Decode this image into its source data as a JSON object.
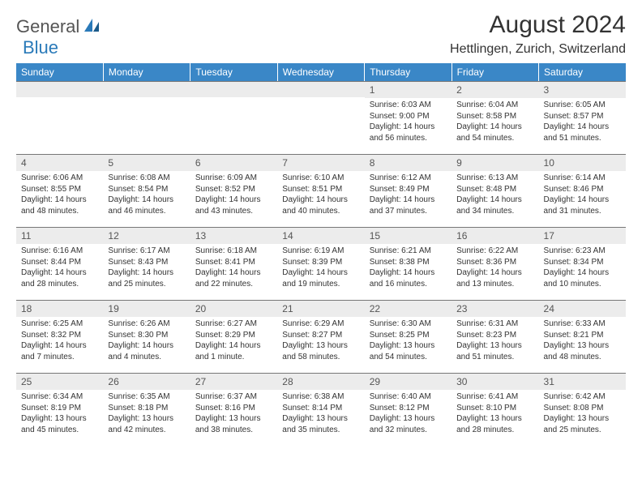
{
  "brand": {
    "general": "General",
    "blue": "Blue"
  },
  "title": "August 2024",
  "location": "Hettlingen, Zurich, Switzerland",
  "colors": {
    "header_bg": "#3a87c7",
    "header_text": "#ffffff",
    "daynum_bg": "#ececec",
    "border": "#777777",
    "brand_blue": "#2a7ab9",
    "text": "#333333"
  },
  "weekdays": [
    "Sunday",
    "Monday",
    "Tuesday",
    "Wednesday",
    "Thursday",
    "Friday",
    "Saturday"
  ],
  "weeks": [
    [
      null,
      null,
      null,
      null,
      {
        "d": "1",
        "sr": "Sunrise: 6:03 AM",
        "ss": "Sunset: 9:00 PM",
        "dl1": "Daylight: 14 hours",
        "dl2": "and 56 minutes."
      },
      {
        "d": "2",
        "sr": "Sunrise: 6:04 AM",
        "ss": "Sunset: 8:58 PM",
        "dl1": "Daylight: 14 hours",
        "dl2": "and 54 minutes."
      },
      {
        "d": "3",
        "sr": "Sunrise: 6:05 AM",
        "ss": "Sunset: 8:57 PM",
        "dl1": "Daylight: 14 hours",
        "dl2": "and 51 minutes."
      }
    ],
    [
      {
        "d": "4",
        "sr": "Sunrise: 6:06 AM",
        "ss": "Sunset: 8:55 PM",
        "dl1": "Daylight: 14 hours",
        "dl2": "and 48 minutes."
      },
      {
        "d": "5",
        "sr": "Sunrise: 6:08 AM",
        "ss": "Sunset: 8:54 PM",
        "dl1": "Daylight: 14 hours",
        "dl2": "and 46 minutes."
      },
      {
        "d": "6",
        "sr": "Sunrise: 6:09 AM",
        "ss": "Sunset: 8:52 PM",
        "dl1": "Daylight: 14 hours",
        "dl2": "and 43 minutes."
      },
      {
        "d": "7",
        "sr": "Sunrise: 6:10 AM",
        "ss": "Sunset: 8:51 PM",
        "dl1": "Daylight: 14 hours",
        "dl2": "and 40 minutes."
      },
      {
        "d": "8",
        "sr": "Sunrise: 6:12 AM",
        "ss": "Sunset: 8:49 PM",
        "dl1": "Daylight: 14 hours",
        "dl2": "and 37 minutes."
      },
      {
        "d": "9",
        "sr": "Sunrise: 6:13 AM",
        "ss": "Sunset: 8:48 PM",
        "dl1": "Daylight: 14 hours",
        "dl2": "and 34 minutes."
      },
      {
        "d": "10",
        "sr": "Sunrise: 6:14 AM",
        "ss": "Sunset: 8:46 PM",
        "dl1": "Daylight: 14 hours",
        "dl2": "and 31 minutes."
      }
    ],
    [
      {
        "d": "11",
        "sr": "Sunrise: 6:16 AM",
        "ss": "Sunset: 8:44 PM",
        "dl1": "Daylight: 14 hours",
        "dl2": "and 28 minutes."
      },
      {
        "d": "12",
        "sr": "Sunrise: 6:17 AM",
        "ss": "Sunset: 8:43 PM",
        "dl1": "Daylight: 14 hours",
        "dl2": "and 25 minutes."
      },
      {
        "d": "13",
        "sr": "Sunrise: 6:18 AM",
        "ss": "Sunset: 8:41 PM",
        "dl1": "Daylight: 14 hours",
        "dl2": "and 22 minutes."
      },
      {
        "d": "14",
        "sr": "Sunrise: 6:19 AM",
        "ss": "Sunset: 8:39 PM",
        "dl1": "Daylight: 14 hours",
        "dl2": "and 19 minutes."
      },
      {
        "d": "15",
        "sr": "Sunrise: 6:21 AM",
        "ss": "Sunset: 8:38 PM",
        "dl1": "Daylight: 14 hours",
        "dl2": "and 16 minutes."
      },
      {
        "d": "16",
        "sr": "Sunrise: 6:22 AM",
        "ss": "Sunset: 8:36 PM",
        "dl1": "Daylight: 14 hours",
        "dl2": "and 13 minutes."
      },
      {
        "d": "17",
        "sr": "Sunrise: 6:23 AM",
        "ss": "Sunset: 8:34 PM",
        "dl1": "Daylight: 14 hours",
        "dl2": "and 10 minutes."
      }
    ],
    [
      {
        "d": "18",
        "sr": "Sunrise: 6:25 AM",
        "ss": "Sunset: 8:32 PM",
        "dl1": "Daylight: 14 hours",
        "dl2": "and 7 minutes."
      },
      {
        "d": "19",
        "sr": "Sunrise: 6:26 AM",
        "ss": "Sunset: 8:30 PM",
        "dl1": "Daylight: 14 hours",
        "dl2": "and 4 minutes."
      },
      {
        "d": "20",
        "sr": "Sunrise: 6:27 AM",
        "ss": "Sunset: 8:29 PM",
        "dl1": "Daylight: 14 hours",
        "dl2": "and 1 minute."
      },
      {
        "d": "21",
        "sr": "Sunrise: 6:29 AM",
        "ss": "Sunset: 8:27 PM",
        "dl1": "Daylight: 13 hours",
        "dl2": "and 58 minutes."
      },
      {
        "d": "22",
        "sr": "Sunrise: 6:30 AM",
        "ss": "Sunset: 8:25 PM",
        "dl1": "Daylight: 13 hours",
        "dl2": "and 54 minutes."
      },
      {
        "d": "23",
        "sr": "Sunrise: 6:31 AM",
        "ss": "Sunset: 8:23 PM",
        "dl1": "Daylight: 13 hours",
        "dl2": "and 51 minutes."
      },
      {
        "d": "24",
        "sr": "Sunrise: 6:33 AM",
        "ss": "Sunset: 8:21 PM",
        "dl1": "Daylight: 13 hours",
        "dl2": "and 48 minutes."
      }
    ],
    [
      {
        "d": "25",
        "sr": "Sunrise: 6:34 AM",
        "ss": "Sunset: 8:19 PM",
        "dl1": "Daylight: 13 hours",
        "dl2": "and 45 minutes."
      },
      {
        "d": "26",
        "sr": "Sunrise: 6:35 AM",
        "ss": "Sunset: 8:18 PM",
        "dl1": "Daylight: 13 hours",
        "dl2": "and 42 minutes."
      },
      {
        "d": "27",
        "sr": "Sunrise: 6:37 AM",
        "ss": "Sunset: 8:16 PM",
        "dl1": "Daylight: 13 hours",
        "dl2": "and 38 minutes."
      },
      {
        "d": "28",
        "sr": "Sunrise: 6:38 AM",
        "ss": "Sunset: 8:14 PM",
        "dl1": "Daylight: 13 hours",
        "dl2": "and 35 minutes."
      },
      {
        "d": "29",
        "sr": "Sunrise: 6:40 AM",
        "ss": "Sunset: 8:12 PM",
        "dl1": "Daylight: 13 hours",
        "dl2": "and 32 minutes."
      },
      {
        "d": "30",
        "sr": "Sunrise: 6:41 AM",
        "ss": "Sunset: 8:10 PM",
        "dl1": "Daylight: 13 hours",
        "dl2": "and 28 minutes."
      },
      {
        "d": "31",
        "sr": "Sunrise: 6:42 AM",
        "ss": "Sunset: 8:08 PM",
        "dl1": "Daylight: 13 hours",
        "dl2": "and 25 minutes."
      }
    ]
  ]
}
